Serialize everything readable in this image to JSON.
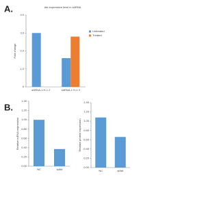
{
  "panels": [
    {
      "label": "A."
    },
    {
      "label": "B."
    }
  ],
  "chart_data": [
    {
      "type": "bar",
      "title": "Akt expression level in shRNA",
      "categories": [
        "shRNA-1 H-1 2",
        "shRNA-1 H-1 3"
      ],
      "series": [
        {
          "name": "Untreated",
          "color": "#5b9bd5",
          "values": [
            3.0,
            1.6
          ]
        },
        {
          "name": "Treated",
          "color": "#ed7d31",
          "values": [
            null,
            2.8
          ]
        }
      ],
      "ylabel": "Fold change",
      "ylim": [
        0,
        4
      ],
      "yticks": [
        0,
        {
          "value": 1,
          "label": "1.0"
        },
        {
          "value": 2,
          "label": "2.0"
        },
        {
          "value": 3,
          "label": "3.0"
        },
        {
          "value": 4,
          "label": "4.0"
        }
      ]
    },
    {
      "type": "bar",
      "categories": [
        "NC",
        "siAkt"
      ],
      "series": [
        {
          "name": "Relative mRNA expression",
          "color": "#5b9bd5",
          "values": [
            1.0,
            0.37
          ]
        }
      ],
      "ylabel": "Relative mRNA expression",
      "ylim": [
        0,
        1.4
      ],
      "yticks": [
        {
          "value": 0,
          "label": "0.00"
        },
        {
          "value": 0.2,
          "label": "0.20"
        },
        {
          "value": 0.4,
          "label": "0.40"
        },
        {
          "value": 0.6,
          "label": "0.60"
        },
        {
          "value": 0.8,
          "label": "0.80"
        },
        {
          "value": 1,
          "label": "1.00"
        },
        {
          "value": 1.2,
          "label": "1.20"
        },
        {
          "value": 1.4,
          "label": "1.40"
        }
      ]
    },
    {
      "type": "bar",
      "categories": [
        "NC",
        "siAkt"
      ],
      "series": [
        {
          "name": "Relative protein expression",
          "color": "#5b9bd5",
          "values": [
            1.08,
            0.66
          ]
        }
      ],
      "ylabel": "Relative protein expression",
      "ylim": [
        0,
        1.4
      ],
      "yticks": [
        {
          "value": 0,
          "label": "0.00"
        },
        {
          "value": 0.2,
          "label": "0.20"
        },
        {
          "value": 0.4,
          "label": "0.40"
        },
        {
          "value": 0.6,
          "label": "0.60"
        },
        {
          "value": 0.8,
          "label": "0.80"
        },
        {
          "value": 1,
          "label": "1.00"
        },
        {
          "value": 1.2,
          "label": "1.20"
        },
        {
          "value": 1.4,
          "label": "1.40"
        }
      ]
    }
  ]
}
